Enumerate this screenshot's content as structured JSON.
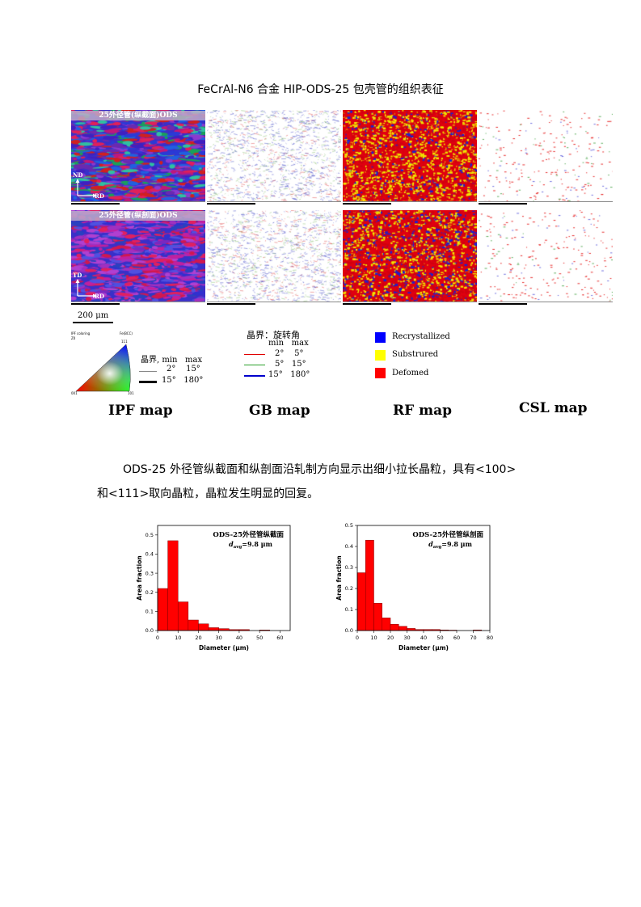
{
  "title": "FeCrAl-N6 合金 HIP-ODS-25 包壳管的组织表征",
  "micrographs": {
    "row1_label": "25外径管(纵截面)ODS",
    "row2_label": "25外径管(纵剖面)ODS",
    "row1_axes": {
      "vertical": "ND",
      "horizontal": "RD"
    },
    "row2_axes": {
      "vertical": "TD",
      "horizontal": "RD"
    },
    "scale_bar": "200 μm"
  },
  "ipf_legend": {
    "small_left": "IPF coloring",
    "small_left2": "Z0",
    "small_right": "Fe(BCC)",
    "corner_top": "111",
    "corner_left": "001",
    "corner_right": "101",
    "header": "晶界, min   max",
    "rows": [
      "2°    15°",
      "15°   180°"
    ]
  },
  "gb_legend": {
    "header": "晶界：旋转角",
    "subheader": "min   max",
    "rows": [
      "2°    5°",
      "5°   15°",
      "15°   180°"
    ],
    "colors": [
      "#e00000",
      "#2aa02a",
      "#0000cc"
    ]
  },
  "rf_legend": {
    "items": [
      {
        "label": "Recrystallized",
        "color": "#0000ff"
      },
      {
        "label": "Substrured",
        "color": "#ffff00"
      },
      {
        "label": "Defomed",
        "color": "#ff0000"
      }
    ]
  },
  "map_labels": [
    "IPF map",
    "GB map",
    "RF map",
    "CSL map"
  ],
  "paragraph_line1": "ODS-25 外径管纵截面和纵剖面沿轧制方向显示出细小拉长晶粒，具有<100>",
  "paragraph_line2": "和<111>取向晶粒，晶粒发生明显的回复。",
  "chart_data": [
    {
      "type": "bar",
      "title": "ODS-25外径管纵截面",
      "annotation": "davg=9.8 μm",
      "annotation_main": "d",
      "annotation_sub": "avg",
      "annotation_rest": "=9.8 μm",
      "xlabel": "Diameter (μm)",
      "ylabel": "Area fraction",
      "xlim": [
        0,
        65
      ],
      "ylim": [
        0,
        0.55
      ],
      "xticks": [
        0,
        10,
        20,
        30,
        40,
        50,
        60
      ],
      "yticks": [
        0.0,
        0.1,
        0.2,
        0.3,
        0.4,
        0.5
      ],
      "bin_width": 5,
      "x": [
        2.5,
        7.5,
        12.5,
        17.5,
        22.5,
        27.5,
        32.5,
        37.5,
        42.5,
        47.5,
        52.5,
        57.5
      ],
      "values": [
        0.22,
        0.47,
        0.15,
        0.055,
        0.035,
        0.015,
        0.01,
        0.005,
        0.005,
        0,
        0.003,
        0
      ],
      "color": "#ff0000"
    },
    {
      "type": "bar",
      "title": "ODS-25外径管纵剖面",
      "annotation": "davg=9.8 μm",
      "annotation_main": "d",
      "annotation_sub": "avg",
      "annotation_rest": "=9.8 μm",
      "xlabel": "Diameter (μm)",
      "ylabel": "Area fraction",
      "xlim": [
        0,
        80
      ],
      "ylim": [
        0,
        0.5
      ],
      "xticks": [
        0,
        10,
        20,
        30,
        40,
        50,
        60,
        70,
        80
      ],
      "yticks": [
        0.0,
        0.1,
        0.2,
        0.3,
        0.4,
        0.5
      ],
      "bin_width": 5,
      "x": [
        2.5,
        7.5,
        12.5,
        17.5,
        22.5,
        27.5,
        32.5,
        37.5,
        42.5,
        47.5,
        52.5,
        57.5,
        62.5,
        67.5,
        72.5
      ],
      "values": [
        0.275,
        0.43,
        0.13,
        0.06,
        0.03,
        0.02,
        0.01,
        0.005,
        0.005,
        0.005,
        0.003,
        0.002,
        0,
        0,
        0.003
      ],
      "color": "#ff0000"
    }
  ]
}
